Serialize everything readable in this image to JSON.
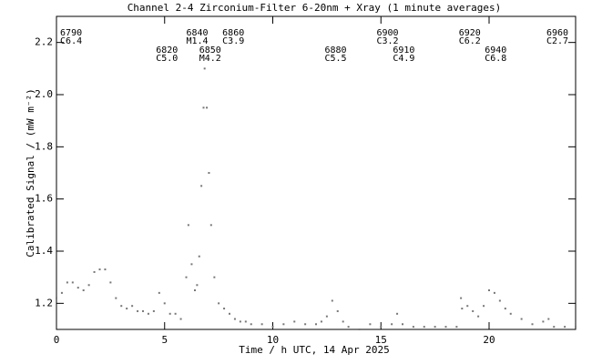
{
  "chart_data": {
    "type": "scatter",
    "title": "Channel 2-4   Zirconium-Filter   6-20nm + Xray   (1 minute averages)",
    "x_label": "Time / h UTC, 14 Apr 2025",
    "y_label": "Calibrated Signal / (mW m⁻²)",
    "color": "#777777",
    "xlim": [
      0,
      24
    ],
    "xticks": [
      0,
      5,
      10,
      15,
      20
    ],
    "ylim": [
      1.1,
      2.3
    ],
    "yticks": [
      {
        "value": 1.2,
        "label": "1.2"
      },
      {
        "value": 1.4,
        "label": "1.4"
      },
      {
        "value": 1.6,
        "label": "1.6"
      },
      {
        "value": 1.8,
        "label": "1.8"
      },
      {
        "value": 2.0,
        "label": "2.0"
      },
      {
        "value": 2.2,
        "label": "2.2"
      }
    ],
    "x": [
      0,
      0.25,
      0.5,
      0.75,
      1.0,
      1.25,
      1.5,
      1.75,
      2.0,
      2.25,
      2.5,
      2.75,
      3.0,
      3.25,
      3.5,
      3.75,
      4.0,
      4.25,
      4.5,
      4.75,
      5.0,
      5.25,
      5.5,
      5.75,
      6.0,
      6.1,
      6.25,
      6.4,
      6.5,
      6.6,
      6.7,
      6.8,
      6.85,
      6.95,
      7.05,
      7.15,
      7.3,
      7.5,
      7.75,
      8.0,
      8.25,
      8.5,
      8.75,
      9.0,
      9.5,
      10.0,
      10.5,
      11.0,
      11.5,
      12.0,
      12.25,
      12.5,
      12.75,
      13.0,
      13.25,
      13.5,
      14.0,
      14.5,
      15.0,
      15.5,
      15.75,
      16.0,
      16.5,
      17.0,
      17.5,
      18.0,
      18.5,
      18.7,
      18.75,
      19.0,
      19.25,
      19.5,
      19.75,
      20.0,
      20.25,
      20.5,
      20.75,
      21.0,
      21.5,
      22.0,
      22.5,
      22.75,
      23.0,
      23.5,
      24.0
    ],
    "values": [
      1.22,
      1.24,
      1.28,
      1.28,
      1.26,
      1.25,
      1.27,
      1.32,
      1.33,
      1.33,
      1.28,
      1.22,
      1.19,
      1.18,
      1.19,
      1.17,
      1.17,
      1.16,
      1.17,
      1.24,
      1.2,
      1.16,
      1.16,
      1.14,
      1.3,
      1.5,
      1.35,
      1.25,
      1.27,
      1.38,
      1.65,
      1.95,
      2.1,
      1.95,
      1.7,
      1.5,
      1.3,
      1.2,
      1.18,
      1.16,
      1.14,
      1.13,
      1.13,
      1.12,
      1.12,
      1.11,
      1.12,
      1.13,
      1.12,
      1.12,
      1.13,
      1.15,
      1.21,
      1.17,
      1.13,
      1.11,
      1.1,
      1.12,
      1.11,
      1.12,
      1.16,
      1.12,
      1.11,
      1.11,
      1.11,
      1.11,
      1.11,
      1.22,
      1.18,
      1.19,
      1.17,
      1.15,
      1.19,
      1.25,
      1.24,
      1.21,
      1.18,
      1.16,
      1.14,
      1.12,
      1.13,
      1.14,
      1.11,
      1.11,
      1.11
    ],
    "annotations": [
      {
        "x": 0.17,
        "number": "6790",
        "class": "C6.4"
      },
      {
        "x": 4.6,
        "number": "6820",
        "class": "C5.0"
      },
      {
        "x": 6.0,
        "number": "6840",
        "class": "M1.4"
      },
      {
        "x": 6.6,
        "number": "6850",
        "class": "M4.2"
      },
      {
        "x": 7.67,
        "number": "6860",
        "class": "C3.9"
      },
      {
        "x": 12.4,
        "number": "6880",
        "class": "C5.5"
      },
      {
        "x": 14.8,
        "number": "6900",
        "class": "C3.2"
      },
      {
        "x": 15.55,
        "number": "6910",
        "class": "C4.9"
      },
      {
        "x": 18.6,
        "number": "6920",
        "class": "C6.2"
      },
      {
        "x": 19.8,
        "number": "6940",
        "class": "C6.8"
      },
      {
        "x": 22.65,
        "number": "6960",
        "class": "C2.7"
      }
    ]
  }
}
